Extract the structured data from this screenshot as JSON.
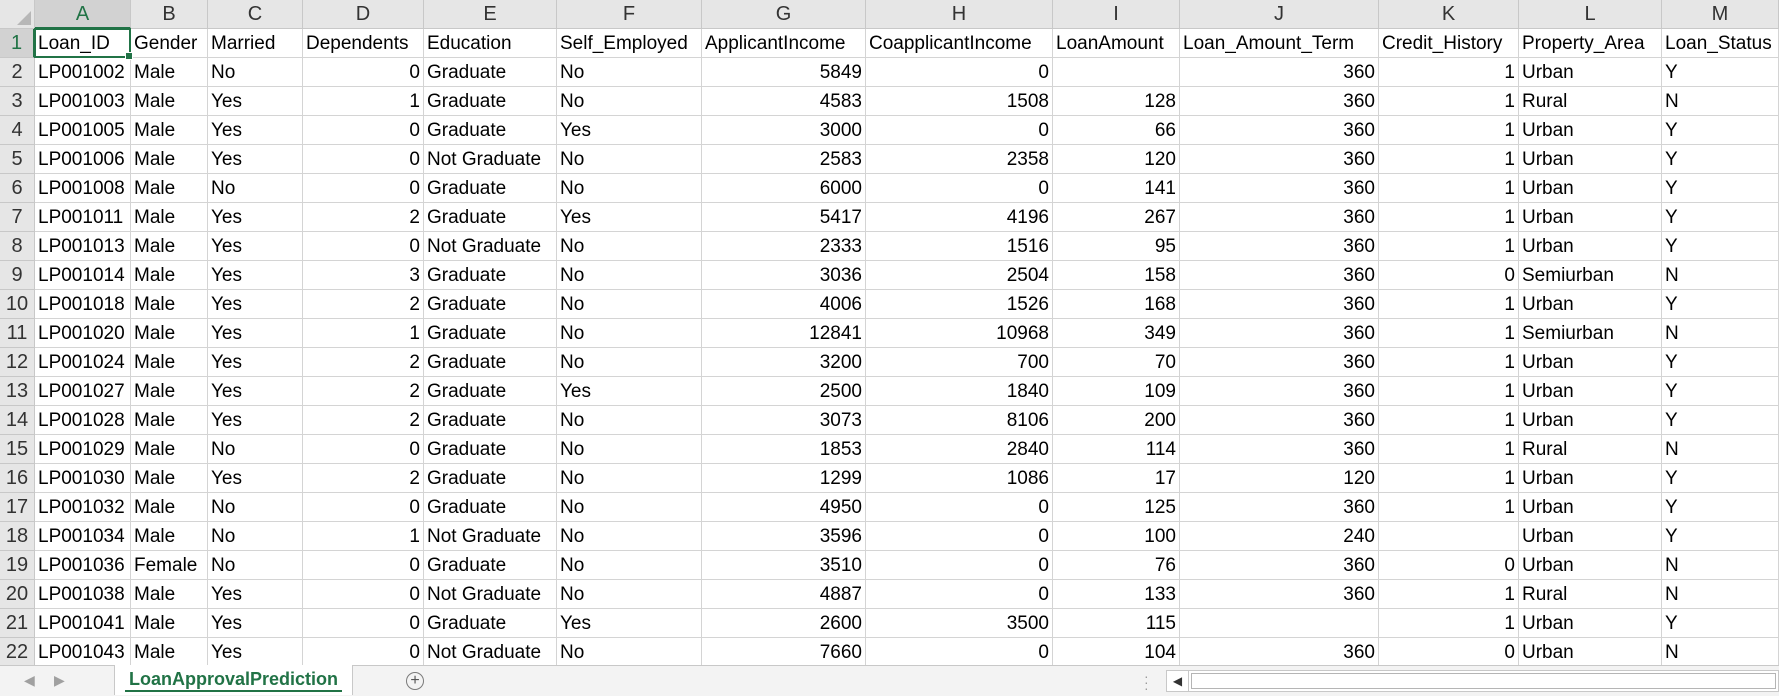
{
  "sheet": {
    "columns": [
      "A",
      "B",
      "C",
      "D",
      "E",
      "F",
      "G",
      "H",
      "I",
      "J",
      "K",
      "L",
      "M"
    ],
    "rows": [
      [
        "Loan_ID",
        "Gender",
        "Married",
        "Dependents",
        "Education",
        "Self_Employed",
        "ApplicantIncome",
        "CoapplicantIncome",
        "LoanAmount",
        "Loan_Amount_Term",
        "Credit_History",
        "Property_Area",
        "Loan_Status"
      ],
      [
        "LP001002",
        "Male",
        "No",
        "0",
        "Graduate",
        "No",
        "5849",
        "0",
        "",
        "360",
        "1",
        "Urban",
        "Y"
      ],
      [
        "LP001003",
        "Male",
        "Yes",
        "1",
        "Graduate",
        "No",
        "4583",
        "1508",
        "128",
        "360",
        "1",
        "Rural",
        "N"
      ],
      [
        "LP001005",
        "Male",
        "Yes",
        "0",
        "Graduate",
        "Yes",
        "3000",
        "0",
        "66",
        "360",
        "1",
        "Urban",
        "Y"
      ],
      [
        "LP001006",
        "Male",
        "Yes",
        "0",
        "Not Graduate",
        "No",
        "2583",
        "2358",
        "120",
        "360",
        "1",
        "Urban",
        "Y"
      ],
      [
        "LP001008",
        "Male",
        "No",
        "0",
        "Graduate",
        "No",
        "6000",
        "0",
        "141",
        "360",
        "1",
        "Urban",
        "Y"
      ],
      [
        "LP001011",
        "Male",
        "Yes",
        "2",
        "Graduate",
        "Yes",
        "5417",
        "4196",
        "267",
        "360",
        "1",
        "Urban",
        "Y"
      ],
      [
        "LP001013",
        "Male",
        "Yes",
        "0",
        "Not Graduate",
        "No",
        "2333",
        "1516",
        "95",
        "360",
        "1",
        "Urban",
        "Y"
      ],
      [
        "LP001014",
        "Male",
        "Yes",
        "3",
        "Graduate",
        "No",
        "3036",
        "2504",
        "158",
        "360",
        "0",
        "Semiurban",
        "N"
      ],
      [
        "LP001018",
        "Male",
        "Yes",
        "2",
        "Graduate",
        "No",
        "4006",
        "1526",
        "168",
        "360",
        "1",
        "Urban",
        "Y"
      ],
      [
        "LP001020",
        "Male",
        "Yes",
        "1",
        "Graduate",
        "No",
        "12841",
        "10968",
        "349",
        "360",
        "1",
        "Semiurban",
        "N"
      ],
      [
        "LP001024",
        "Male",
        "Yes",
        "2",
        "Graduate",
        "No",
        "3200",
        "700",
        "70",
        "360",
        "1",
        "Urban",
        "Y"
      ],
      [
        "LP001027",
        "Male",
        "Yes",
        "2",
        "Graduate",
        "Yes",
        "2500",
        "1840",
        "109",
        "360",
        "1",
        "Urban",
        "Y"
      ],
      [
        "LP001028",
        "Male",
        "Yes",
        "2",
        "Graduate",
        "No",
        "3073",
        "8106",
        "200",
        "360",
        "1",
        "Urban",
        "Y"
      ],
      [
        "LP001029",
        "Male",
        "No",
        "0",
        "Graduate",
        "No",
        "1853",
        "2840",
        "114",
        "360",
        "1",
        "Rural",
        "N"
      ],
      [
        "LP001030",
        "Male",
        "Yes",
        "2",
        "Graduate",
        "No",
        "1299",
        "1086",
        "17",
        "120",
        "1",
        "Urban",
        "Y"
      ],
      [
        "LP001032",
        "Male",
        "No",
        "0",
        "Graduate",
        "No",
        "4950",
        "0",
        "125",
        "360",
        "1",
        "Urban",
        "Y"
      ],
      [
        "LP001034",
        "Male",
        "No",
        "1",
        "Not Graduate",
        "No",
        "3596",
        "0",
        "100",
        "240",
        "",
        "Urban",
        "Y"
      ],
      [
        "LP001036",
        "Female",
        "No",
        "0",
        "Graduate",
        "No",
        "3510",
        "0",
        "76",
        "360",
        "0",
        "Urban",
        "N"
      ],
      [
        "LP001038",
        "Male",
        "Yes",
        "0",
        "Not Graduate",
        "No",
        "4887",
        "0",
        "133",
        "360",
        "1",
        "Rural",
        "N"
      ],
      [
        "LP001041",
        "Male",
        "Yes",
        "0",
        "Graduate",
        "Yes",
        "2600",
        "3500",
        "115",
        "",
        "1",
        "Urban",
        "Y"
      ],
      [
        "LP001043",
        "Male",
        "Yes",
        "0",
        "Not Graduate",
        "No",
        "7660",
        "0",
        "104",
        "360",
        "0",
        "Urban",
        "N"
      ]
    ],
    "active_cell": "A1"
  },
  "tabs": {
    "active_sheet": "LoanApprovalPrediction",
    "prev_arrow": "◀",
    "next_arrow": "▶",
    "add_symbol": "+"
  },
  "icons": {
    "add_sheet": "plus-circle-icon",
    "scroll_left": "triangle-left-icon"
  },
  "colors": {
    "accent": "#217346",
    "header_bg": "#e6e6e6"
  }
}
